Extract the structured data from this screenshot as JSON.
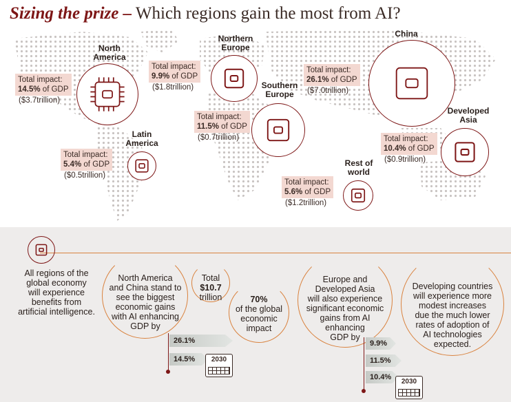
{
  "title": {
    "emphasis": "Sizing the prize –",
    "rest": " Which regions gain the most from AI?"
  },
  "colors": {
    "accent": "#7d1616",
    "orange": "#d9823e",
    "pink": "#f3d8d1",
    "panel": "#eeeceb"
  },
  "regions": {
    "north_america": {
      "name_1": "North",
      "name_2": "America",
      "label": "Total impact:",
      "value": "14.5%",
      "unit": " of GDP",
      "trillion": "($3.7trillion)"
    },
    "latin_america": {
      "name_1": "Latin",
      "name_2": "America",
      "label": "Total impact:",
      "value": "5.4%",
      "unit": " of GDP",
      "trillion": "($0.5trillion)"
    },
    "northern_europe": {
      "name_1": "Northern",
      "name_2": "Europe",
      "label": "Total impact:",
      "value": "9.9%",
      "unit": " of GDP",
      "trillion": "($1.8trillion)"
    },
    "southern_europe": {
      "name_1": "Southern",
      "name_2": "Europe",
      "label": "Total impact:",
      "value": "11.5%",
      "unit": " of GDP",
      "trillion": "($0.7trillion)"
    },
    "china": {
      "name_1": "China",
      "label": "Total impact:",
      "value": "26.1%",
      "unit": " of GDP",
      "trillion": "($7.0trillion)"
    },
    "developed_asia": {
      "name_1": "Developed",
      "name_2": "Asia",
      "label": "Total impact:",
      "value": "10.4%",
      "unit": " of GDP",
      "trillion": "($0.9trillion)"
    },
    "rest_of_world": {
      "name_1": "Rest of",
      "name_2": "world",
      "label": "Total impact:",
      "value": "5.6%",
      "unit": " of GDP",
      "trillion": "($1.2trillion)"
    }
  },
  "bottom": {
    "all_regions": [
      "All regions of the",
      "global economy",
      "will experience",
      "benefits from",
      "artificial intelligence."
    ],
    "na_china": [
      "North America",
      "and China stand to",
      "see the biggest",
      "economic gains",
      "with AI enhancing",
      "GDP by"
    ],
    "total": {
      "l1": "Total",
      "l2": "$10.7",
      "l3": "trillion"
    },
    "seventy": {
      "l1": "70%",
      "l2": "of the global",
      "l3": "economic",
      "l4": "impact"
    },
    "bars_left": {
      "a": "26.1%",
      "b": "14.5%"
    },
    "cal_year": "2030",
    "europe_asia": [
      "Europe and",
      "Developed Asia",
      "will also experience",
      "significant economic",
      "gains from AI",
      "enhancing",
      "GDP by"
    ],
    "bars_right": {
      "a": "9.9%",
      "b": "11.5%",
      "c": "10.4%"
    },
    "developing": [
      "Developing countries",
      "will experience more",
      "modest increases",
      "due the much lower",
      "rates of adoption of",
      "AI technologies",
      "expected."
    ]
  }
}
